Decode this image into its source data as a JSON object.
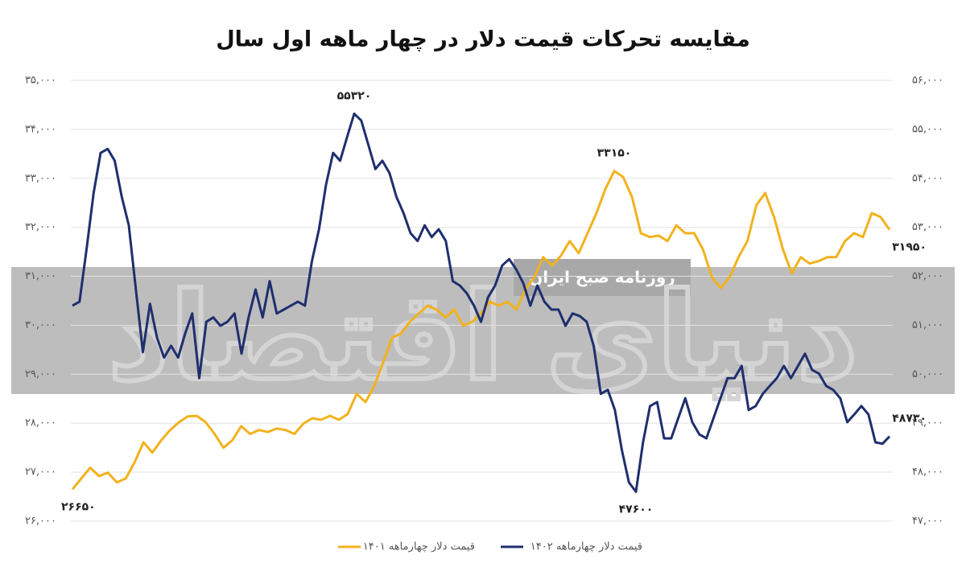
{
  "chart_data": {
    "type": "line",
    "title": "مقایسه تحرکات قیمت دلار در چهار ماهه اول سال",
    "watermark": {
      "logo": "دنیای اقتصاد",
      "text": "روزنامه صبح ایران"
    },
    "ylim": [
      26000,
      35000
    ],
    "yticks": [
      {
        "value": 26000,
        "label": "۲۶,۰۰۰"
      },
      {
        "value": 27000,
        "label": "۲۷,۰۰۰"
      },
      {
        "value": 28000,
        "label": "۲۸,۰۰۰"
      },
      {
        "value": 29000,
        "label": "۲۹,۰۰۰"
      },
      {
        "value": 30000,
        "label": "۳۰,۰۰۰"
      },
      {
        "value": 31000,
        "label": "۳۱,۰۰۰"
      },
      {
        "value": 32000,
        "label": "۳۲,۰۰۰"
      },
      {
        "value": 33000,
        "label": "۳۳,۰۰۰"
      },
      {
        "value": 34000,
        "label": "۳۴,۰۰۰"
      },
      {
        "value": 35000,
        "label": "۳۵,۰۰۰"
      }
    ],
    "y2lim": [
      47000,
      56000
    ],
    "y2ticks": [
      {
        "value": 47000,
        "label": "۴۷,۰۰۰"
      },
      {
        "value": 48000,
        "label": "۴۸,۰۰۰"
      },
      {
        "value": 49000,
        "label": "۴۹,۰۰۰"
      },
      {
        "value": 50000,
        "label": "۵۰,۰۰۰"
      },
      {
        "value": 51000,
        "label": "۵۱,۰۰۰"
      },
      {
        "value": 52000,
        "label": "۵۲,۰۰۰"
      },
      {
        "value": 53000,
        "label": "۵۳,۰۰۰"
      },
      {
        "value": 54000,
        "label": "۵۴,۰۰۰"
      },
      {
        "value": 55000,
        "label": "۵۵,۰۰۰"
      },
      {
        "value": 56000,
        "label": "۵۶,۰۰۰"
      }
    ],
    "grid": true,
    "legend": "bottom",
    "series": [
      {
        "name": "قیمت دلار چهارماهه ۱۴۰۱",
        "color": "#f2b21d",
        "axis": "y",
        "values": [
          26650,
          26870,
          27090,
          26920,
          26990,
          26790,
          26870,
          27200,
          27610,
          27400,
          27650,
          27860,
          28020,
          28140,
          28150,
          28020,
          27780,
          27500,
          27650,
          27940,
          27780,
          27860,
          27820,
          27890,
          27860,
          27780,
          27990,
          28100,
          28070,
          28150,
          28070,
          28190,
          28600,
          28430,
          28760,
          29250,
          29750,
          29830,
          30070,
          30240,
          30400,
          30320,
          30160,
          30320,
          29990,
          30070,
          30240,
          30480,
          30400,
          30480,
          30320,
          30730,
          30980,
          31390,
          31220,
          31420,
          31720,
          31470,
          31880,
          32290,
          32780,
          33150,
          33030,
          32620,
          31880,
          31800,
          31830,
          31720,
          32040,
          31880,
          31880,
          31550,
          30980,
          30760,
          30980,
          31390,
          31720,
          32450,
          32700,
          32210,
          31550,
          31060,
          31390,
          31260,
          31310,
          31390,
          31390,
          31720,
          31880,
          31800,
          32290,
          32210,
          31950
        ],
        "value_labels": [
          "۲۶۶۵۰",
          null,
          null,
          null,
          null,
          null,
          null,
          null,
          null,
          null,
          null,
          null,
          null,
          null,
          null,
          null,
          null,
          null,
          null,
          null,
          null,
          null,
          null,
          null,
          null,
          null,
          null,
          null,
          null,
          null,
          null,
          null,
          null,
          null,
          null,
          null,
          null,
          null,
          null,
          null,
          null,
          null,
          null,
          null,
          null,
          null,
          null,
          null,
          null,
          null,
          null,
          null,
          null,
          null,
          null,
          null,
          null,
          null,
          null,
          null,
          null,
          "۳۳۱۵۰",
          null,
          null,
          null,
          null,
          null,
          null,
          null,
          null,
          null,
          null,
          null,
          null,
          null,
          null,
          null,
          null,
          null,
          null,
          null,
          null,
          null,
          null,
          null,
          null,
          null,
          null,
          null,
          null,
          null,
          null,
          "۳۱۹۵۰"
        ]
      },
      {
        "name": "قیمت دلار چهارماهه ۱۴۰۲",
        "color": "#1f2f6e",
        "axis": "y2",
        "values": [
          51400,
          51480,
          52550,
          53700,
          54520,
          54600,
          54360,
          53620,
          53040,
          51730,
          50450,
          51440,
          50750,
          50340,
          50580,
          50340,
          50830,
          51240,
          49920,
          51070,
          51160,
          50990,
          51070,
          51240,
          50420,
          51160,
          51730,
          51160,
          51900,
          51240,
          51320,
          51400,
          51480,
          51400,
          52310,
          52960,
          53870,
          54520,
          54360,
          54850,
          55320,
          55180,
          54690,
          54190,
          54360,
          54110,
          53620,
          53290,
          52880,
          52720,
          53040,
          52800,
          52960,
          52720,
          51900,
          51810,
          51650,
          51400,
          51070,
          51570,
          51810,
          52220,
          52350,
          52140,
          51860,
          51400,
          51810,
          51480,
          51320,
          51320,
          50990,
          51240,
          51190,
          51070,
          50580,
          49600,
          49680,
          49270,
          48450,
          47790,
          47600,
          48610,
          49350,
          49430,
          48690,
          48690,
          49100,
          49510,
          49020,
          48770,
          48690,
          49100,
          49510,
          49920,
          49920,
          50170,
          49270,
          49350,
          49600,
          49760,
          49920,
          50170,
          49920,
          50170,
          50420,
          50090,
          50010,
          49760,
          49680,
          49510,
          49020,
          49180,
          49350,
          49180,
          48610,
          48580,
          48730
        ],
        "value_labels": [
          null,
          null,
          null,
          null,
          null,
          null,
          null,
          null,
          null,
          null,
          null,
          null,
          null,
          null,
          null,
          null,
          null,
          null,
          null,
          null,
          null,
          null,
          null,
          null,
          null,
          null,
          null,
          null,
          null,
          null,
          null,
          null,
          null,
          null,
          null,
          null,
          null,
          null,
          null,
          null,
          "۵۵۳۲۰",
          null,
          null,
          null,
          null,
          null,
          null,
          null,
          null,
          null,
          null,
          null,
          null,
          null,
          null,
          null,
          null,
          null,
          null,
          null,
          null,
          null,
          null,
          null,
          null,
          null,
          null,
          null,
          null,
          null,
          null,
          null,
          null,
          null,
          null,
          null,
          null,
          null,
          null,
          null,
          "۴۷۶۰۰",
          null,
          null,
          null,
          null,
          null,
          null,
          null,
          null,
          null,
          null,
          null,
          null,
          null,
          null,
          null,
          null,
          null,
          null,
          null,
          null,
          null,
          null,
          null,
          null,
          null,
          null,
          null,
          null,
          null,
          null,
          null,
          null,
          null,
          null,
          null,
          "۴۸۷۳۰"
        ]
      }
    ]
  }
}
